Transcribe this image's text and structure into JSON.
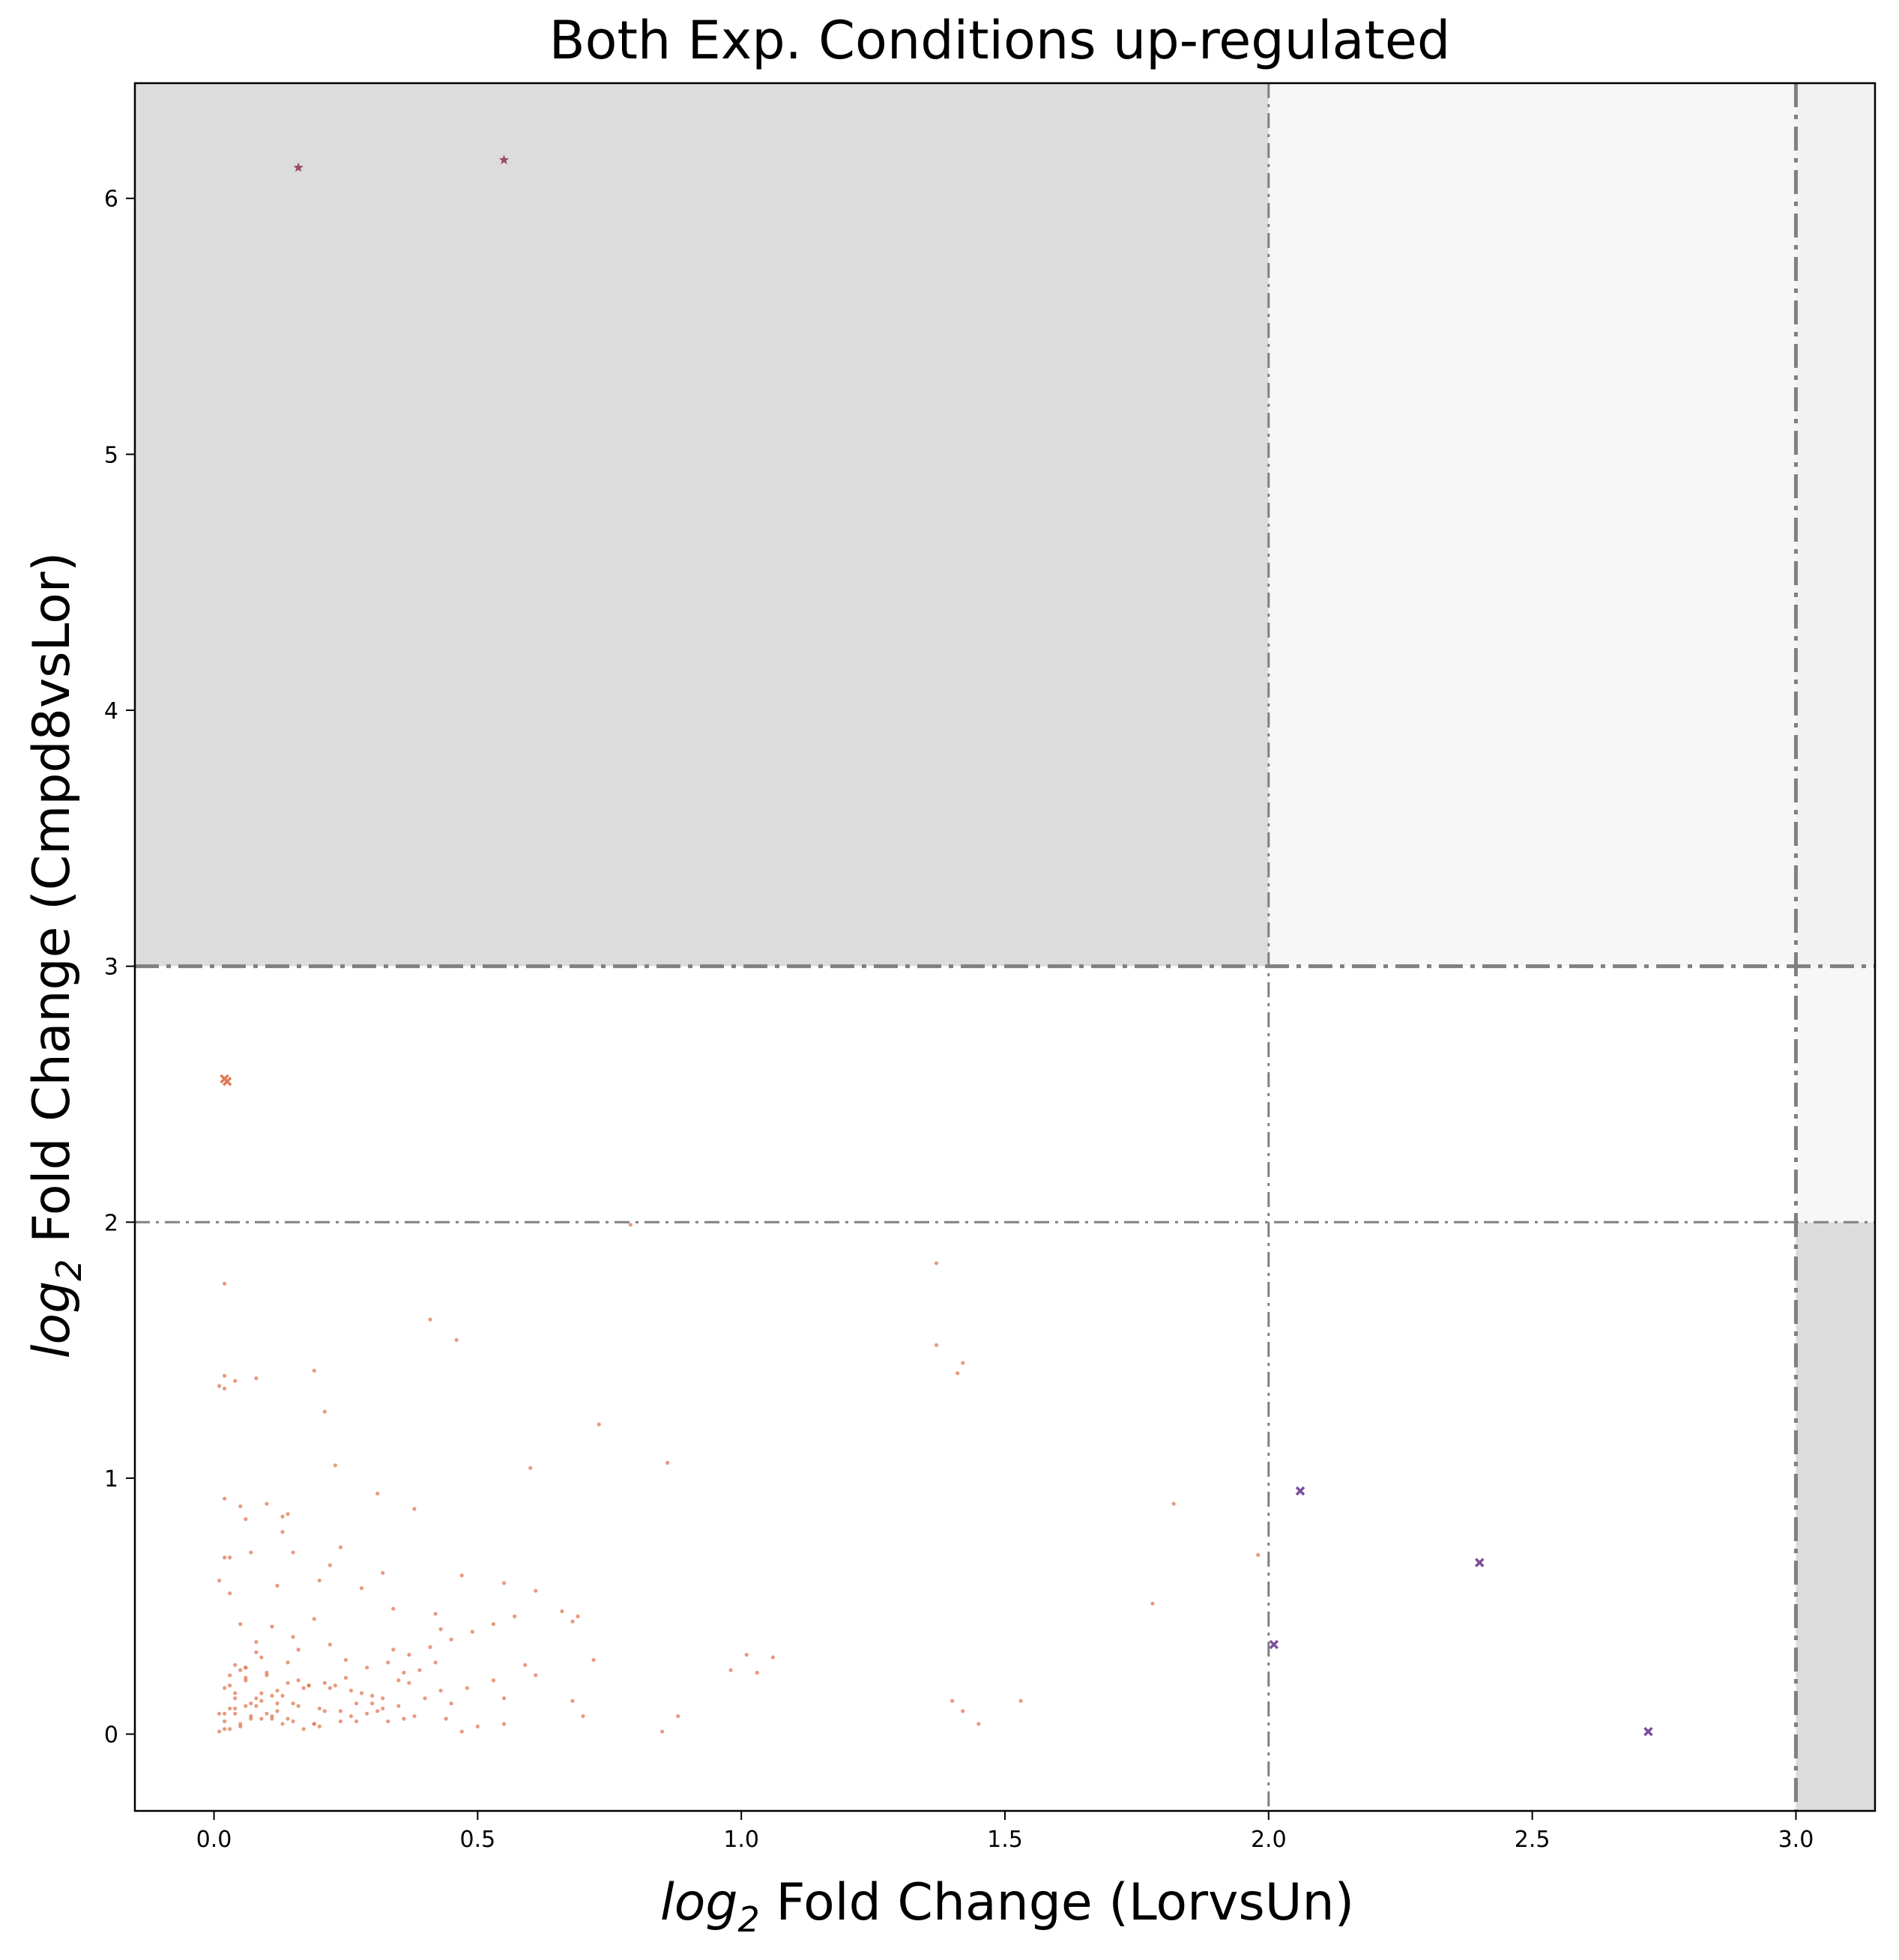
{
  "chart_data": {
    "type": "scatter",
    "title": "Both Exp. Conditions up-regulated",
    "xlabel": {
      "math": "log",
      "sub": "2",
      "rest": " Fold Change (LorvsUn)"
    },
    "ylabel": {
      "math": "log",
      "sub": "2",
      "rest": " Fold Change (Cmpd8vsLor)"
    },
    "xlim": [
      -0.15,
      3.15
    ],
    "ylim": [
      -0.3,
      6.45
    ],
    "xticks": [
      {
        "v": 0.0,
        "label": "0.0"
      },
      {
        "v": 0.5,
        "label": "0.5"
      },
      {
        "v": 1.0,
        "label": "1.0"
      },
      {
        "v": 1.5,
        "label": "1.5"
      },
      {
        "v": 2.0,
        "label": "2.0"
      },
      {
        "v": 2.5,
        "label": "2.5"
      },
      {
        "v": 3.0,
        "label": "3.0"
      }
    ],
    "yticks": [
      {
        "v": 0,
        "label": "0"
      },
      {
        "v": 1,
        "label": "1"
      },
      {
        "v": 2,
        "label": "2"
      },
      {
        "v": 3,
        "label": "3"
      },
      {
        "v": 4,
        "label": "4"
      },
      {
        "v": 5,
        "label": "5"
      },
      {
        "v": 6,
        "label": "6"
      }
    ],
    "grid": false,
    "shaded_regions": [
      {
        "x": [
          -0.15,
          2.0
        ],
        "y": [
          3.0,
          6.45
        ],
        "color": "#dcdcdc"
      },
      {
        "x": [
          2.0,
          3.0
        ],
        "y": [
          3.0,
          6.45
        ],
        "color": "#f7f7f7"
      },
      {
        "x": [
          3.0,
          3.15
        ],
        "y": [
          2.0,
          3.0
        ],
        "color": "#f7f7f7"
      },
      {
        "x": [
          3.0,
          3.15
        ],
        "y": [
          3.0,
          6.45
        ],
        "color": "#f2f2f2"
      },
      {
        "x": [
          3.0,
          3.15
        ],
        "y": [
          -0.3,
          2.0
        ],
        "color": "#dcdcdc"
      }
    ],
    "threshold_lines": [
      {
        "orientation": "v",
        "value": 2.0,
        "style": "thin"
      },
      {
        "orientation": "v",
        "value": 3.0,
        "style": "thick"
      },
      {
        "orientation": "h",
        "value": 2.0,
        "style": "thin"
      },
      {
        "orientation": "h",
        "value": 3.0,
        "style": "thick"
      }
    ],
    "colors": {
      "dots": "#e07a55",
      "dots_dark": "#c4502e",
      "purple": "#7b4f9e",
      "maroon": "#9a4a68",
      "line": "#808080"
    },
    "series": [
      {
        "marker": "star",
        "color": "#9a4a68",
        "x": [
          0.16,
          0.55
        ],
        "y": [
          6.12,
          6.15
        ]
      },
      {
        "marker": "x",
        "color": "#7b4f9e",
        "x": [
          2.06,
          2.4,
          2.01,
          2.72
        ],
        "y": [
          0.95,
          0.67,
          0.35,
          0.01
        ]
      },
      {
        "marker": "x",
        "color": "#e07a55",
        "x": [
          0.02,
          0.025
        ],
        "y": [
          2.56,
          2.55
        ]
      },
      {
        "marker": "dot",
        "color": "#e07a55",
        "x": [
          0.79,
          1.37,
          0.02,
          0.41,
          0.46,
          1.37,
          1.42,
          0.19,
          0.01,
          0.02,
          0.08,
          0.04,
          0.02,
          1.41,
          0.21,
          0.73,
          0.86,
          0.23,
          0.6,
          0.31,
          1.82,
          0.02,
          0.05,
          0.1,
          0.38,
          0.14,
          0.13,
          0.06,
          0.13,
          0.24,
          0.02,
          0.15,
          1.98,
          0.07,
          0.03,
          0.22,
          0.32,
          0.47,
          0.01,
          0.2,
          0.55,
          0.12,
          0.28,
          0.61,
          0.03,
          1.78,
          0.34,
          0.66,
          0.42,
          0.69,
          0.19,
          0.68,
          0.05,
          0.11,
          0.43,
          1.06,
          1.01,
          0.15,
          0.72,
          1.03,
          0.98,
          0.59,
          0.25,
          0.34,
          0.61,
          0.37,
          0.53,
          1.4,
          1.53,
          1.42,
          1.45,
          0.68,
          0.7,
          0.88,
          0.85,
          0.55,
          0.47,
          0.36,
          0.08,
          0.08,
          0.09,
          0.04,
          0.05,
          0.03,
          0.06,
          0.14,
          0.18,
          0.22,
          0.26,
          0.28,
          0.3,
          0.32,
          0.12,
          0.16,
          0.2,
          0.24,
          0.1,
          0.07,
          0.11,
          0.15,
          0.19,
          0.05,
          0.03,
          0.01,
          0.02,
          0.04,
          0.06,
          0.09,
          0.13,
          0.17,
          0.21,
          0.25,
          0.29,
          0.33,
          0.37,
          0.41,
          0.45,
          0.49,
          0.53,
          0.57,
          0.03,
          0.08,
          0.12,
          0.06,
          0.1,
          0.14,
          0.18,
          0.02,
          0.05,
          0.09,
          0.11,
          0.07,
          0.04,
          0.16,
          0.22,
          0.27,
          0.31,
          0.35,
          0.39,
          0.44,
          0.5,
          0.02,
          0.06,
          0.09,
          0.13,
          0.17,
          0.23,
          0.29,
          0.35,
          0.43,
          0.55,
          0.01,
          0.03,
          0.07,
          0.12,
          0.15,
          0.2,
          0.26,
          0.33,
          0.4,
          0.02,
          0.04,
          0.08,
          0.1,
          0.14,
          0.19,
          0.24,
          0.3,
          0.38,
          0.45,
          0.04,
          0.06,
          0.11,
          0.16,
          0.21,
          0.27,
          0.32,
          0.36,
          0.42,
          0.48
        ],
        "y": [
          1.99,
          1.84,
          1.76,
          1.62,
          1.54,
          1.52,
          1.45,
          1.42,
          1.36,
          1.4,
          1.39,
          1.38,
          1.35,
          1.41,
          1.26,
          1.21,
          1.06,
          1.05,
          1.04,
          0.94,
          0.9,
          0.92,
          0.89,
          0.9,
          0.88,
          0.86,
          0.85,
          0.84,
          0.79,
          0.73,
          0.69,
          0.71,
          0.7,
          0.71,
          0.69,
          0.66,
          0.63,
          0.62,
          0.6,
          0.6,
          0.59,
          0.58,
          0.57,
          0.56,
          0.55,
          0.51,
          0.49,
          0.48,
          0.47,
          0.46,
          0.45,
          0.44,
          0.43,
          0.42,
          0.41,
          0.3,
          0.31,
          0.38,
          0.29,
          0.24,
          0.25,
          0.27,
          0.29,
          0.33,
          0.23,
          0.2,
          0.21,
          0.13,
          0.13,
          0.09,
          0.04,
          0.13,
          0.07,
          0.07,
          0.01,
          0.14,
          0.01,
          0.06,
          0.36,
          0.32,
          0.3,
          0.27,
          0.25,
          0.23,
          0.22,
          0.2,
          0.19,
          0.18,
          0.17,
          0.16,
          0.15,
          0.14,
          0.12,
          0.11,
          0.1,
          0.09,
          0.08,
          0.07,
          0.06,
          0.05,
          0.04,
          0.03,
          0.02,
          0.01,
          0.05,
          0.08,
          0.11,
          0.13,
          0.15,
          0.18,
          0.2,
          0.22,
          0.26,
          0.28,
          0.31,
          0.34,
          0.37,
          0.4,
          0.43,
          0.46,
          0.1,
          0.14,
          0.17,
          0.21,
          0.24,
          0.28,
          0.19,
          0.02,
          0.04,
          0.06,
          0.07,
          0.12,
          0.16,
          0.33,
          0.35,
          0.12,
          0.09,
          0.21,
          0.25,
          0.06,
          0.03,
          0.18,
          0.26,
          0.16,
          0.04,
          0.02,
          0.19,
          0.08,
          0.11,
          0.17,
          0.04,
          0.08,
          0.19,
          0.06,
          0.09,
          0.12,
          0.03,
          0.07,
          0.05,
          0.14,
          0.08,
          0.14,
          0.11,
          0.23,
          0.06,
          0.04,
          0.05,
          0.12,
          0.07,
          0.12,
          0.1,
          0.26,
          0.15,
          0.21,
          0.09,
          0.05,
          0.1,
          0.24,
          0.28,
          0.18
        ]
      }
    ]
  }
}
